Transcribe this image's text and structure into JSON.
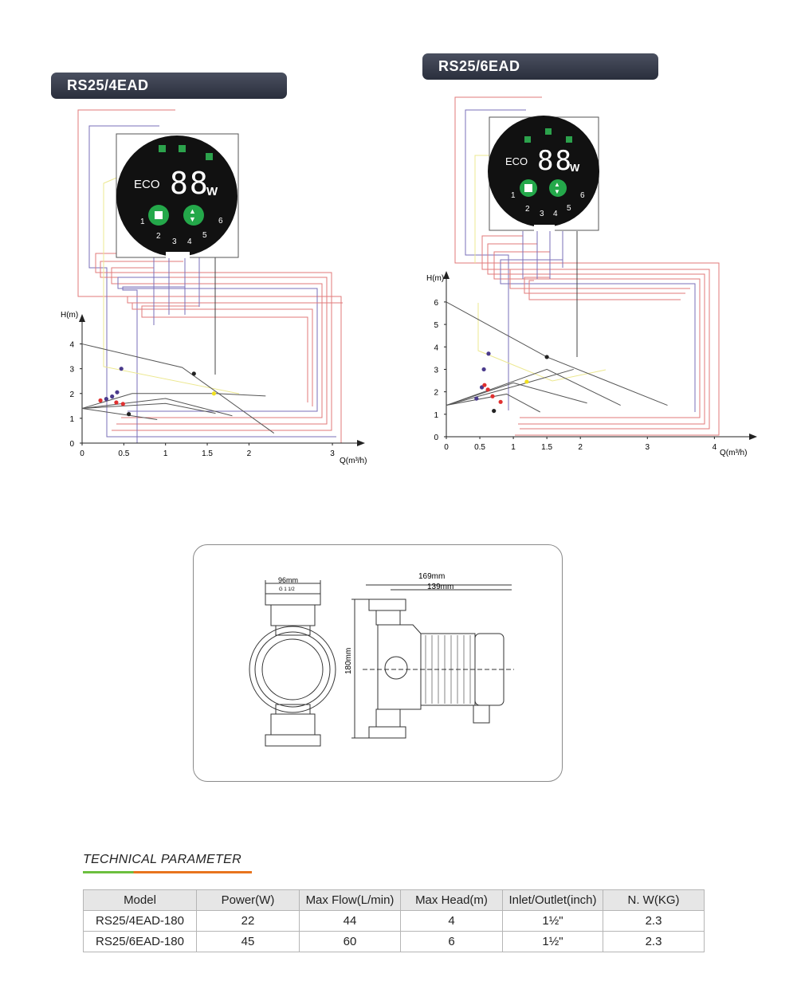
{
  "panels": [
    {
      "model": "RS25/4EAD",
      "display": {
        "eco": "ECO",
        "digits": "88",
        "unit": "W",
        "speeds": [
          "1",
          "2",
          "3",
          "4",
          "5",
          "6"
        ]
      },
      "chart": {
        "ylabel": "H(m)",
        "xlabel": "Q(m³/h)",
        "xticks": [
          "0",
          "0.5",
          "1",
          "1.5",
          "2",
          "3"
        ],
        "yticks": [
          "0",
          "1",
          "2",
          "3",
          "4"
        ]
      }
    },
    {
      "model": "RS25/6EAD",
      "display": {
        "eco": "ECO",
        "digits": "88",
        "unit": "W",
        "speeds": [
          "1",
          "2",
          "3",
          "4",
          "5",
          "6"
        ]
      },
      "chart": {
        "ylabel": "H(m)",
        "xlabel": "Q(m³/h)",
        "xticks": [
          "0",
          "0.5",
          "1",
          "1.5",
          "2",
          "3",
          "4"
        ],
        "yticks": [
          "0",
          "1",
          "2",
          "3",
          "4",
          "5",
          "6"
        ]
      }
    }
  ],
  "chart_data": [
    {
      "type": "line",
      "title": "RS25/4EAD",
      "xlabel": "Q(m³/h)",
      "ylabel": "H(m)",
      "xlim": [
        0,
        3.2
      ],
      "ylim": [
        0,
        4.5
      ],
      "series": [
        {
          "x": [
            0,
            1.2,
            2.3
          ],
          "y": [
            4.0,
            3.05,
            0.4
          ]
        },
        {
          "x": [
            0,
            0.6,
            1.6,
            2.2
          ],
          "y": [
            1.4,
            2.0,
            2.0,
            1.9
          ]
        },
        {
          "x": [
            0,
            1.0,
            1.8
          ],
          "y": [
            1.4,
            1.8,
            1.1
          ]
        },
        {
          "x": [
            0,
            1.0,
            1.6
          ],
          "y": [
            1.4,
            1.6,
            1.2
          ]
        },
        {
          "x": [
            0,
            0.9
          ],
          "y": [
            1.4,
            0.95
          ]
        }
      ],
      "points": [
        {
          "x": 1.34,
          "y": 2.8,
          "color": "#222222"
        },
        {
          "x": 1.58,
          "y": 2.0,
          "color": "#f0e020"
        },
        {
          "x": 0.47,
          "y": 3.0,
          "color": "#4a3a8c"
        },
        {
          "x": 0.42,
          "y": 2.05,
          "color": "#4a3a8c"
        },
        {
          "x": 0.36,
          "y": 1.88,
          "color": "#4a3a8c"
        },
        {
          "x": 0.29,
          "y": 1.78,
          "color": "#4a3a8c"
        },
        {
          "x": 0.22,
          "y": 1.72,
          "color": "#e03030"
        },
        {
          "x": 0.41,
          "y": 1.64,
          "color": "#e03030"
        },
        {
          "x": 0.49,
          "y": 1.58,
          "color": "#e03030"
        },
        {
          "x": 0.56,
          "y": 1.17,
          "color": "#222222"
        }
      ]
    },
    {
      "type": "line",
      "title": "RS25/6EAD",
      "xlabel": "Q(m³/h)",
      "ylabel": "H(m)",
      "xlim": [
        0,
        4.4
      ],
      "ylim": [
        0,
        6.6
      ],
      "series": [
        {
          "x": [
            0,
            1.5,
            3.3
          ],
          "y": [
            6.0,
            3.55,
            1.4
          ]
        },
        {
          "x": [
            0,
            1.2,
            1.9
          ],
          "y": [
            1.4,
            2.4,
            3.0
          ]
        },
        {
          "x": [
            0,
            1.5,
            2.6
          ],
          "y": [
            1.4,
            3.0,
            1.4
          ]
        },
        {
          "x": [
            0,
            1.0,
            2.1
          ],
          "y": [
            1.4,
            2.4,
            1.5
          ]
        },
        {
          "x": [
            0,
            0.9,
            1.4
          ],
          "y": [
            1.4,
            1.9,
            1.1
          ]
        }
      ],
      "points": [
        {
          "x": 1.5,
          "y": 3.55,
          "color": "#222222"
        },
        {
          "x": 1.2,
          "y": 2.45,
          "color": "#f0e020"
        },
        {
          "x": 0.63,
          "y": 3.7,
          "color": "#4a3a8c"
        },
        {
          "x": 0.56,
          "y": 3.0,
          "color": "#4a3a8c"
        },
        {
          "x": 0.53,
          "y": 2.2,
          "color": "#4a3a8c"
        },
        {
          "x": 0.45,
          "y": 1.7,
          "color": "#4a3a8c"
        },
        {
          "x": 0.57,
          "y": 2.3,
          "color": "#e03030"
        },
        {
          "x": 0.62,
          "y": 2.1,
          "color": "#e03030"
        },
        {
          "x": 0.69,
          "y": 1.8,
          "color": "#e03030"
        },
        {
          "x": 0.81,
          "y": 1.55,
          "color": "#e03030"
        },
        {
          "x": 0.71,
          "y": 1.15,
          "color": "#222222"
        }
      ]
    }
  ],
  "dimensions": {
    "front_width": "96mm",
    "thread": "G 1 1/2",
    "overall_length": "169mm",
    "motor_length": "139mm",
    "height": "180mm"
  },
  "technical": {
    "title": "TECHNICAL PARAMETER",
    "headers": [
      "Model",
      "Power(W)",
      "Max Flow(L/min)",
      "Max Head(m)",
      "Inlet/Outlet(inch)",
      "N. W(KG)"
    ],
    "rows": [
      [
        "RS25/4EAD-180",
        "22",
        "44",
        "4",
        "1½\"",
        "2.3"
      ],
      [
        "RS25/6EAD-180",
        "45",
        "60",
        "6",
        "1½\"",
        "2.3"
      ]
    ]
  }
}
